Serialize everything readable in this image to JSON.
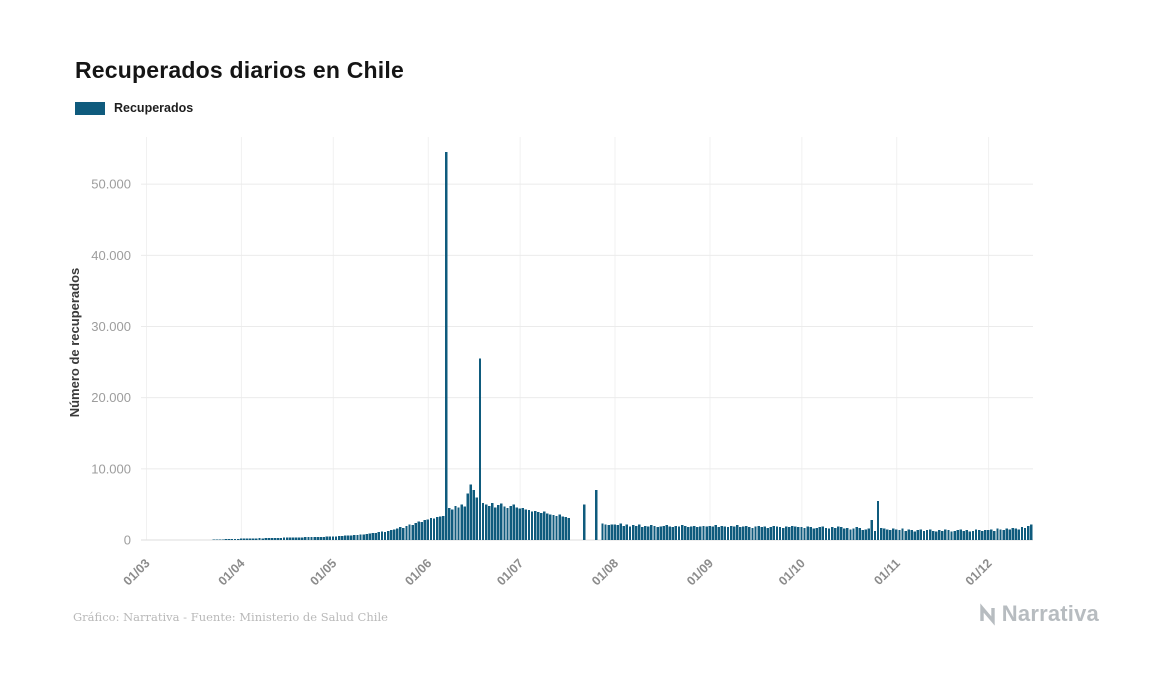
{
  "page": {
    "title": "Recuperados diarios en Chile"
  },
  "legend": {
    "label": "Recuperados"
  },
  "footer": {
    "source": "Gráfico: Narrativa - Fuente: Ministerio de Salud Chile",
    "logo_text": "Narrativa"
  },
  "chart_data": {
    "type": "bar",
    "title": "Recuperados diarios en Chile",
    "series_name": "Recuperados",
    "xlabel": "",
    "ylabel": "Número de recuperados",
    "start_date": "2020-03-01",
    "frequency": "daily",
    "bar_color": "#0f5b7d",
    "grid_color": "#ebebeb",
    "vgrid_color": "#f1f1f1",
    "tick_label_color": "#9d9d9d",
    "x_label_color": "#8c8c8c",
    "ylim": [
      0,
      55500
    ],
    "legend_position": "top-left",
    "y_ticks": [
      {
        "value": 0,
        "label": "0"
      },
      {
        "value": 10000,
        "label": "10.000"
      },
      {
        "value": 20000,
        "label": "20.000"
      },
      {
        "value": 30000,
        "label": "30.000"
      },
      {
        "value": 40000,
        "label": "40.000"
      },
      {
        "value": 50000,
        "label": "50.000"
      }
    ],
    "x_ticks": [
      {
        "day_index": 0,
        "label": "01/03"
      },
      {
        "day_index": 31,
        "label": "01/04"
      },
      {
        "day_index": 61,
        "label": "01/05"
      },
      {
        "day_index": 92,
        "label": "01/06"
      },
      {
        "day_index": 122,
        "label": "01/07"
      },
      {
        "day_index": 153,
        "label": "01/08"
      },
      {
        "day_index": 184,
        "label": "01/09"
      },
      {
        "day_index": 214,
        "label": "01/10"
      },
      {
        "day_index": 245,
        "label": "01/11"
      },
      {
        "day_index": 275,
        "label": "01/12"
      }
    ],
    "values": [
      0,
      0,
      0,
      0,
      0,
      0,
      0,
      0,
      0,
      0,
      0,
      0,
      0,
      0,
      0,
      0,
      0,
      0,
      0,
      0,
      20,
      30,
      40,
      60,
      80,
      100,
      120,
      140,
      150,
      160,
      170,
      180,
      200,
      190,
      210,
      230,
      220,
      250,
      240,
      260,
      280,
      270,
      300,
      290,
      310,
      330,
      320,
      340,
      360,
      350,
      370,
      380,
      400,
      390,
      410,
      430,
      420,
      440,
      450,
      460,
      470,
      500,
      520,
      560,
      540,
      600,
      620,
      650,
      700,
      680,
      750,
      800,
      850,
      900,
      950,
      1000,
      1100,
      1200,
      1150,
      1300,
      1400,
      1500,
      1600,
      1800,
      1700,
      2000,
      2200,
      2100,
      2400,
      2600,
      2500,
      2800,
      2900,
      3100,
      3000,
      3200,
      3300,
      3400,
      54500,
      4500,
      4300,
      4800,
      4600,
      5000,
      4700,
      6500,
      7800,
      7000,
      6000,
      25500,
      5200,
      5000,
      4800,
      5200,
      4600,
      4900,
      5100,
      4700,
      4500,
      4800,
      5000,
      4600,
      4400,
      4500,
      4300,
      4200,
      4000,
      4100,
      3900,
      3800,
      4000,
      3700,
      3600,
      3500,
      3400,
      3600,
      3300,
      3200,
      3100,
      0,
      0,
      0,
      0,
      5000,
      0,
      0,
      0,
      7000,
      0,
      2300,
      2200,
      2100,
      2200,
      2200,
      2100,
      2300,
      2000,
      2200,
      1900,
      2100,
      2000,
      2200,
      1800,
      2000,
      1900,
      2100,
      2000,
      1800,
      1900,
      2000,
      2100,
      1900,
      1800,
      2000,
      1900,
      2100,
      2000,
      1800,
      1900,
      2000,
      1800,
      1900,
      2000,
      1900,
      2000,
      1900,
      2100,
      1800,
      2000,
      1900,
      1800,
      2000,
      1900,
      2100,
      1800,
      1900,
      2000,
      1800,
      1700,
      1900,
      2000,
      1800,
      1900,
      1700,
      1800,
      2000,
      1900,
      1800,
      1700,
      1900,
      1800,
      2000,
      1900,
      1800,
      1800,
      1700,
      1900,
      1800,
      1600,
      1700,
      1800,
      1900,
      1700,
      1600,
      1800,
      1700,
      1900,
      1800,
      1600,
      1700,
      1500,
      1600,
      1800,
      1700,
      1400,
      1500,
      1600,
      2800,
      1300,
      5500,
      1700,
      1600,
      1500,
      1400,
      1600,
      1500,
      1400,
      1600,
      1300,
      1500,
      1400,
      1200,
      1400,
      1500,
      1300,
      1400,
      1500,
      1300,
      1200,
      1400,
      1300,
      1500,
      1400,
      1200,
      1300,
      1400,
      1500,
      1300,
      1400,
      1200,
      1300,
      1500,
      1400,
      1300,
      1400,
      1400,
      1500,
      1300,
      1600,
      1500,
      1400,
      1600,
      1500,
      1700,
      1600,
      1500,
      1800,
      1700,
      2000,
      2200
    ]
  }
}
